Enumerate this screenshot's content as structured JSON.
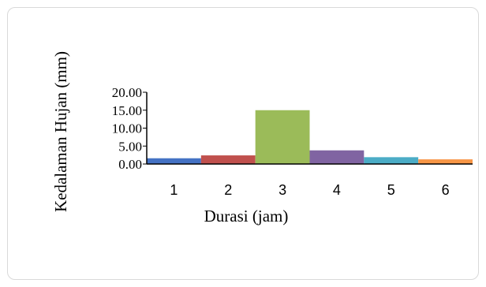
{
  "chart_data": {
    "type": "bar",
    "title": "",
    "xlabel": "Durasi (jam)",
    "ylabel": "Kedalaman Hujan (mm)",
    "categories": [
      "1",
      "2",
      "3",
      "4",
      "5",
      "6"
    ],
    "values": [
      1.6,
      2.4,
      15.0,
      3.8,
      1.9,
      1.3
    ],
    "colors": [
      "#4472c4",
      "#c0504d",
      "#9bbb59",
      "#8064a2",
      "#4bacc6",
      "#f79646"
    ],
    "ylim": [
      0,
      20
    ],
    "yticks": [
      "0.00",
      "5.00",
      "10.00",
      "15.00",
      "20.00"
    ],
    "ytick_values": [
      0,
      5,
      10,
      15,
      20
    ],
    "grid": false,
    "legend": "none"
  }
}
